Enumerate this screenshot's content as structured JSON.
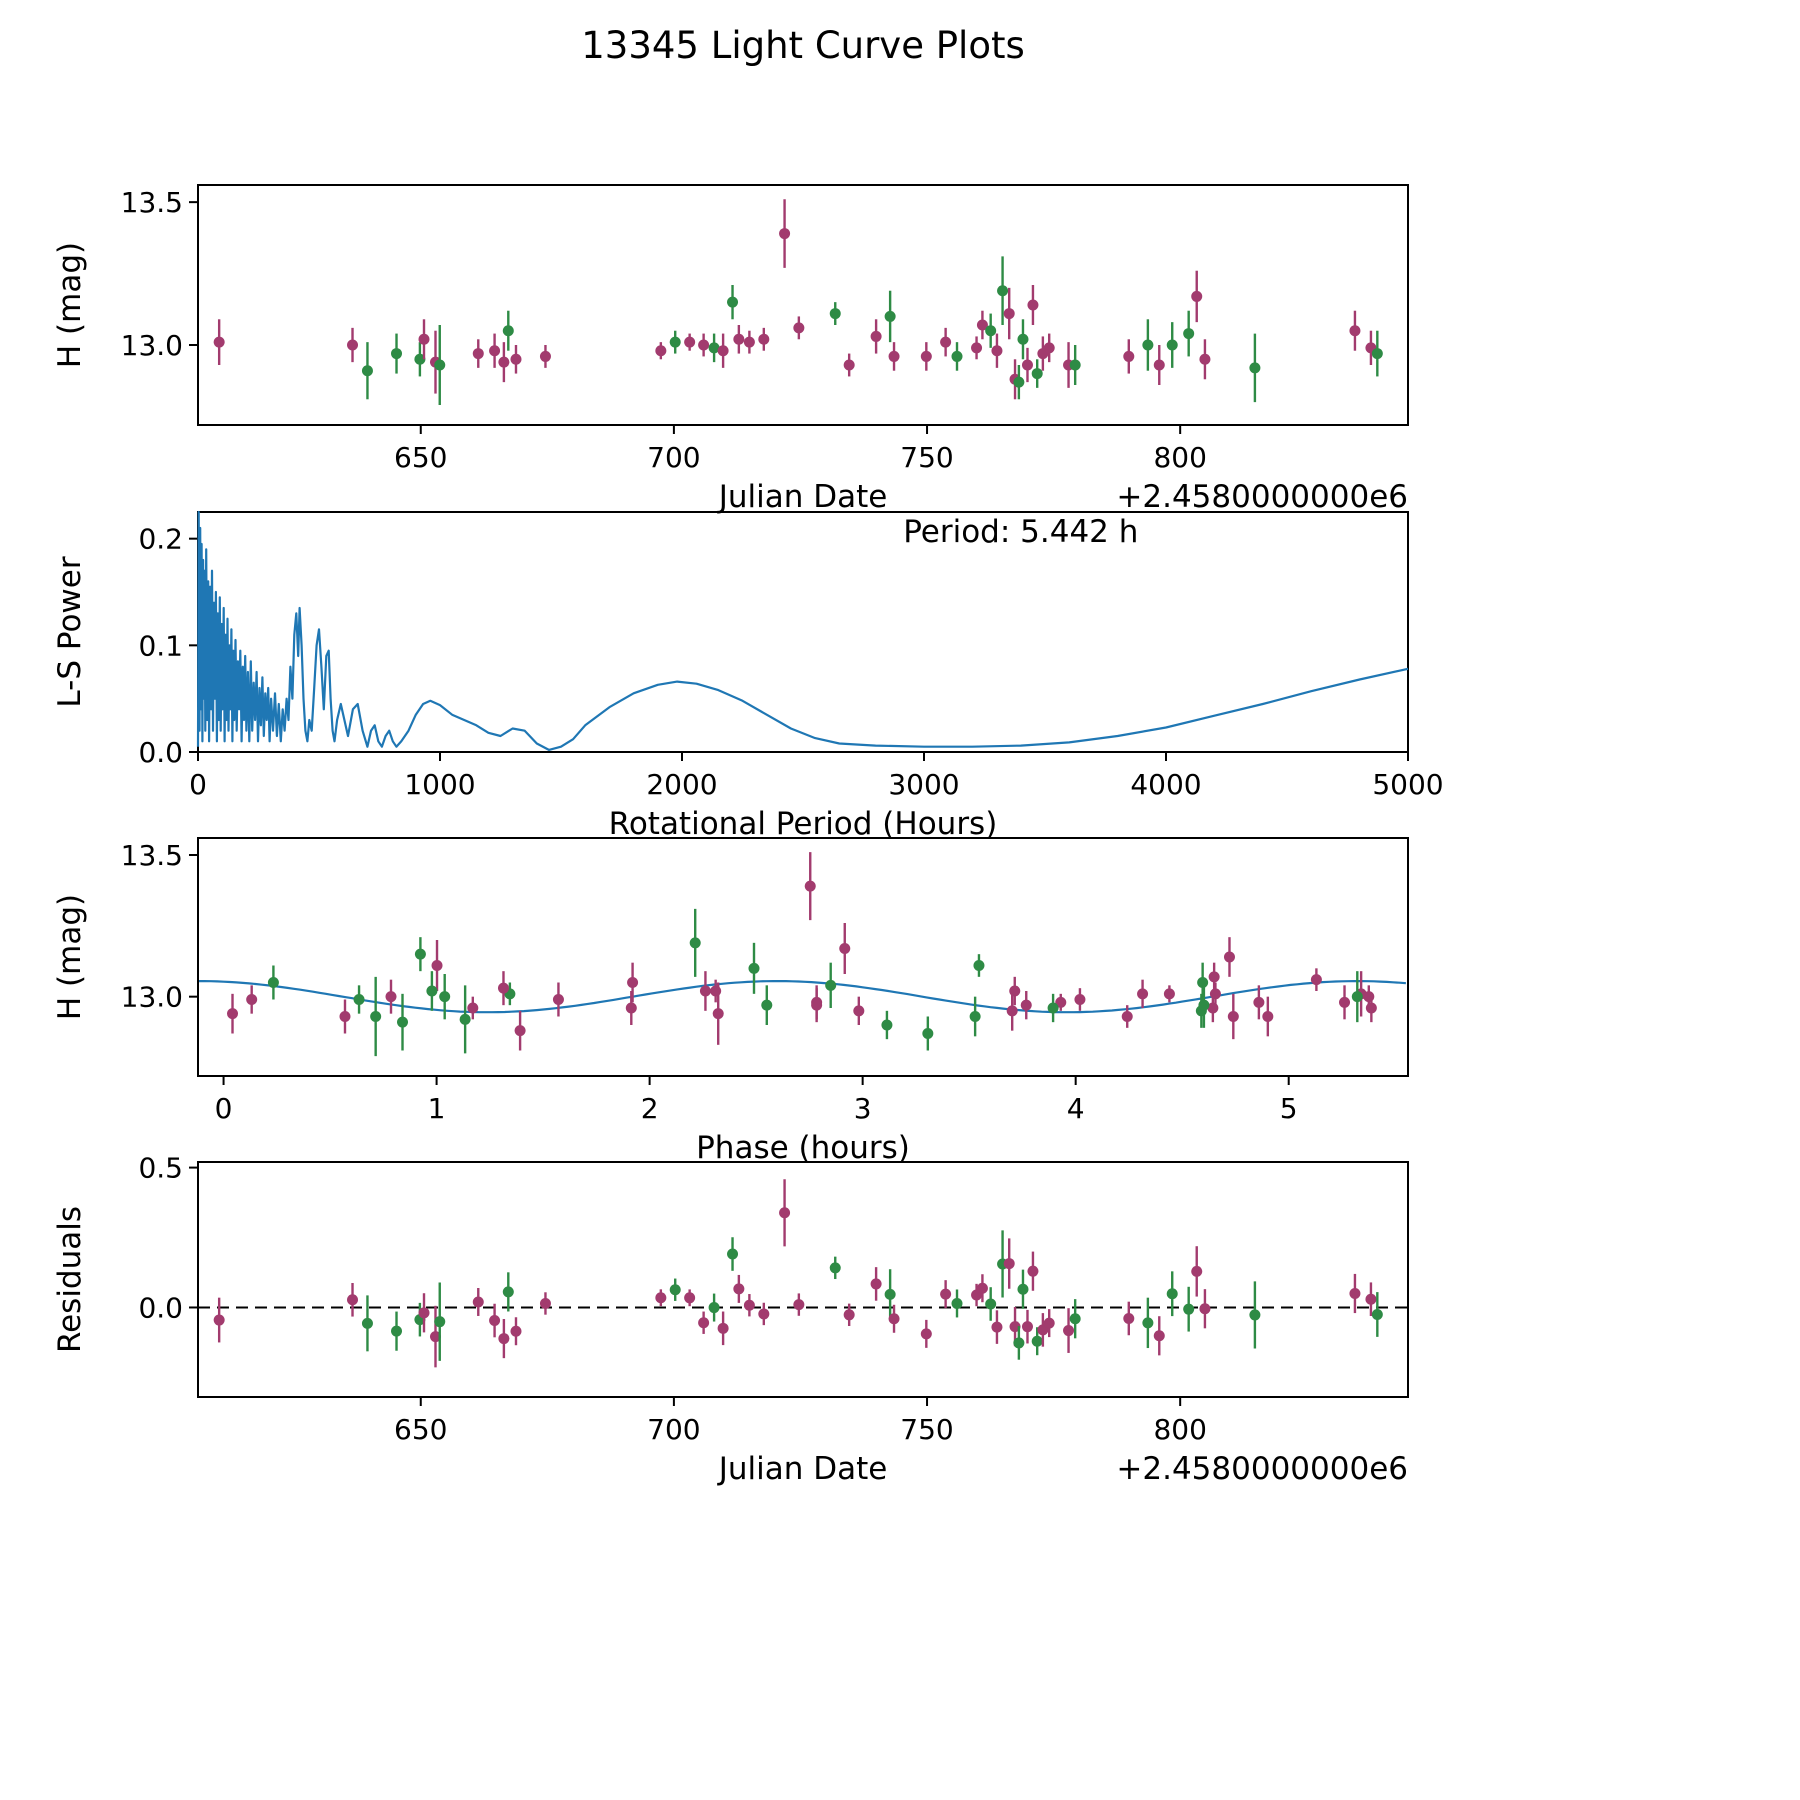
{
  "figure": {
    "title": "13345 Light Curve Plots"
  },
  "series_colors": [
    "#a23b6e",
    "#2e8b45"
  ],
  "fold": {
    "period_hours": 5.442,
    "period_label": "Period: 5.442 h"
  },
  "observations": {
    "jd_offset": [
      610.18,
      636.52,
      639.47,
      645.21,
      649.83,
      650.64,
      652.91,
      653.75,
      661.36,
      664.58,
      666.42,
      667.29,
      668.81,
      674.63,
      697.42,
      700.26,
      703.11,
      705.87,
      707.94,
      709.72,
      711.58,
      712.83,
      714.91,
      717.76,
      721.86,
      724.68,
      731.87,
      734.62,
      739.94,
      742.71,
      743.48,
      749.86,
      753.67,
      755.92,
      759.78,
      760.94,
      762.57,
      763.81,
      764.92,
      766.23,
      767.38,
      768.14,
      768.95,
      769.84,
      770.92,
      771.76,
      772.88,
      774.13,
      777.95,
      779.26,
      789.85,
      793.62,
      795.87,
      798.43,
      801.68,
      803.27,
      804.89,
      814.76,
      834.52,
      837.68,
      838.94
    ],
    "mag": [
      13.01,
      13.0,
      12.91,
      12.97,
      12.95,
      13.02,
      12.94,
      12.93,
      12.97,
      12.98,
      12.94,
      13.05,
      12.95,
      12.96,
      12.98,
      13.01,
      13.01,
      13.0,
      12.99,
      12.98,
      13.15,
      13.02,
      13.01,
      13.02,
      13.39,
      13.06,
      13.11,
      12.93,
      13.03,
      13.1,
      12.96,
      12.96,
      13.01,
      12.96,
      12.99,
      13.07,
      13.05,
      12.98,
      13.19,
      13.11,
      12.88,
      12.87,
      13.02,
      12.93,
      13.14,
      12.9,
      12.97,
      12.99,
      12.93,
      12.93,
      12.96,
      13.0,
      12.93,
      13.0,
      13.04,
      13.17,
      12.95,
      12.92,
      13.05,
      12.99,
      12.97
    ],
    "err": [
      0.08,
      0.06,
      0.1,
      0.07,
      0.06,
      0.07,
      0.11,
      0.14,
      0.05,
      0.06,
      0.07,
      0.07,
      0.05,
      0.04,
      0.03,
      0.04,
      0.03,
      0.04,
      0.05,
      0.06,
      0.06,
      0.05,
      0.04,
      0.04,
      0.12,
      0.04,
      0.04,
      0.04,
      0.06,
      0.09,
      0.05,
      0.05,
      0.05,
      0.05,
      0.04,
      0.05,
      0.06,
      0.06,
      0.12,
      0.09,
      0.07,
      0.06,
      0.07,
      0.06,
      0.07,
      0.05,
      0.06,
      0.05,
      0.08,
      0.07,
      0.06,
      0.09,
      0.07,
      0.08,
      0.08,
      0.09,
      0.07,
      0.12,
      0.07,
      0.06,
      0.08
    ],
    "series": [
      0,
      0,
      1,
      1,
      1,
      0,
      0,
      1,
      0,
      0,
      0,
      1,
      0,
      0,
      0,
      1,
      0,
      0,
      1,
      0,
      1,
      0,
      0,
      0,
      0,
      0,
      1,
      0,
      0,
      1,
      0,
      0,
      0,
      1,
      0,
      0,
      1,
      0,
      1,
      0,
      0,
      1,
      1,
      0,
      0,
      1,
      0,
      0,
      0,
      1,
      0,
      1,
      0,
      1,
      1,
      0,
      0,
      1,
      0,
      0,
      1
    ],
    "series_names": [
      "observer-magenta",
      "observer-green"
    ]
  },
  "chart_data": [
    {
      "type": "scatter",
      "name": "jd-lightcurve",
      "xlabel": "Julian Date",
      "ylabel": "H (mag)",
      "x_offset_label": "+2.4580000000e6",
      "xlim": [
        606,
        845
      ],
      "ylim": [
        12.72,
        13.56
      ],
      "xticks": [
        650,
        700,
        750,
        800
      ],
      "xtick_labels": [
        "650",
        "700",
        "750",
        "800"
      ],
      "yticks": [
        13.0,
        13.5
      ],
      "ytick_labels": [
        "13.0",
        "13.5"
      ],
      "grid": false,
      "points_source": "observations"
    },
    {
      "type": "line",
      "name": "lomb-scargle-periodogram",
      "xlabel": "Rotational Period (Hours)",
      "ylabel": "L-S Power",
      "annotation": "Period: 5.442 h",
      "xlim": [
        0,
        5000
      ],
      "ylim": [
        0,
        0.225
      ],
      "xticks": [
        0,
        1000,
        2000,
        3000,
        4000,
        5000
      ],
      "xtick_labels": [
        "0",
        "1000",
        "2000",
        "3000",
        "4000",
        "5000"
      ],
      "yticks": [
        0.0,
        0.1,
        0.2
      ],
      "ytick_labels": [
        "0.0",
        "0.1",
        "0.2"
      ],
      "grid": false,
      "line_color": "#1f77b4",
      "x": [
        0,
        3,
        6,
        9,
        12,
        15,
        18,
        21,
        24,
        27,
        30,
        34,
        38,
        42,
        46,
        50,
        54,
        58,
        62,
        66,
        70,
        74,
        78,
        82,
        86,
        90,
        94,
        98,
        102,
        106,
        110,
        114,
        118,
        122,
        126,
        130,
        134,
        138,
        142,
        146,
        150,
        155,
        160,
        165,
        170,
        175,
        180,
        185,
        190,
        195,
        200,
        206,
        212,
        218,
        224,
        230,
        236,
        242,
        248,
        254,
        260,
        266,
        272,
        278,
        284,
        290,
        296,
        302,
        310,
        318,
        326,
        334,
        342,
        350,
        358,
        366,
        374,
        382,
        390,
        398,
        406,
        414,
        420,
        428,
        436,
        444,
        452,
        460,
        470,
        480,
        490,
        500,
        510,
        520,
        530,
        540,
        548,
        556,
        564,
        575,
        590,
        605,
        620,
        640,
        660,
        680,
        700,
        715,
        730,
        745,
        760,
        775,
        790,
        805,
        820,
        840,
        870,
        900,
        930,
        960,
        1000,
        1050,
        1100,
        1150,
        1200,
        1250,
        1300,
        1350,
        1400,
        1450,
        1500,
        1550,
        1600,
        1700,
        1800,
        1900,
        1980,
        2060,
        2150,
        2250,
        2350,
        2450,
        2550,
        2650,
        2800,
        3000,
        3200,
        3400,
        3600,
        3800,
        4000,
        4200,
        4400,
        4600,
        4800,
        5000
      ],
      "y": [
        0.005,
        0.225,
        0.02,
        0.21,
        0.04,
        0.195,
        0.01,
        0.18,
        0.05,
        0.17,
        0.02,
        0.19,
        0.03,
        0.16,
        0.01,
        0.155,
        0.04,
        0.17,
        0.02,
        0.14,
        0.05,
        0.15,
        0.01,
        0.13,
        0.03,
        0.145,
        0.02,
        0.12,
        0.04,
        0.135,
        0.01,
        0.11,
        0.03,
        0.125,
        0.02,
        0.1,
        0.04,
        0.115,
        0.01,
        0.095,
        0.03,
        0.105,
        0.02,
        0.085,
        0.04,
        0.095,
        0.01,
        0.08,
        0.03,
        0.09,
        0.02,
        0.075,
        0.01,
        0.085,
        0.02,
        0.065,
        0.03,
        0.075,
        0.01,
        0.06,
        0.025,
        0.07,
        0.015,
        0.055,
        0.03,
        0.06,
        0.01,
        0.05,
        0.02,
        0.055,
        0.015,
        0.045,
        0.01,
        0.04,
        0.02,
        0.05,
        0.03,
        0.08,
        0.05,
        0.11,
        0.13,
        0.09,
        0.135,
        0.1,
        0.05,
        0.02,
        0.01,
        0.03,
        0.02,
        0.06,
        0.1,
        0.115,
        0.08,
        0.04,
        0.09,
        0.095,
        0.05,
        0.02,
        0.01,
        0.03,
        0.045,
        0.03,
        0.015,
        0.04,
        0.045,
        0.02,
        0.005,
        0.02,
        0.025,
        0.01,
        0.005,
        0.015,
        0.02,
        0.01,
        0.005,
        0.01,
        0.02,
        0.035,
        0.045,
        0.048,
        0.044,
        0.035,
        0.03,
        0.025,
        0.018,
        0.015,
        0.022,
        0.02,
        0.008,
        0.002,
        0.005,
        0.012,
        0.025,
        0.042,
        0.055,
        0.063,
        0.066,
        0.064,
        0.058,
        0.048,
        0.035,
        0.022,
        0.013,
        0.008,
        0.006,
        0.005,
        0.005,
        0.006,
        0.009,
        0.015,
        0.023,
        0.034,
        0.045,
        0.057,
        0.068,
        0.078
      ]
    },
    {
      "type": "scatter",
      "name": "phase-folded-lightcurve",
      "xlabel": "Phase (hours)",
      "ylabel": "H (mag)",
      "xlim": [
        -0.12,
        5.56
      ],
      "ylim": [
        12.72,
        13.56
      ],
      "xticks": [
        0,
        1,
        2,
        3,
        4,
        5
      ],
      "xtick_labels": [
        "0",
        "1",
        "2",
        "3",
        "4",
        "5"
      ],
      "yticks": [
        13.0,
        13.5
      ],
      "ytick_labels": [
        "13.0",
        "13.5"
      ],
      "grid": false,
      "points_source": "observations folded at 5.442 h",
      "fit": {
        "mean": 13.0,
        "amplitude": 0.055,
        "period_hours": 2.721,
        "phase_of_max": 2.6,
        "color": "#1f77b4"
      }
    },
    {
      "type": "scatter",
      "name": "residuals",
      "xlabel": "Julian Date",
      "ylabel": "Residuals",
      "x_offset_label": "+2.4580000000e6",
      "xlim": [
        606,
        845
      ],
      "ylim": [
        -0.32,
        0.52
      ],
      "xticks": [
        650,
        700,
        750,
        800
      ],
      "xtick_labels": [
        "650",
        "700",
        "750",
        "800"
      ],
      "yticks": [
        0.0,
        0.5
      ],
      "ytick_labels": [
        "0.0",
        "0.5"
      ],
      "grid": false,
      "zero_line": true,
      "points_source": "observations minus fit"
    }
  ]
}
